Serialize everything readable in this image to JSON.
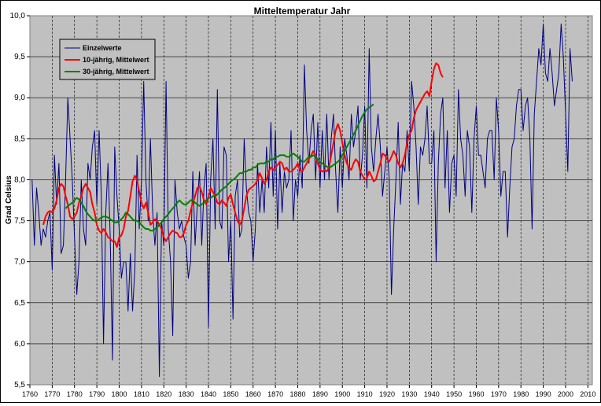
{
  "chart_data": {
    "type": "line",
    "title": "Mitteltemperatur Jahr",
    "ylabel": "Grad Celsius",
    "xlabel": "",
    "xlim": [
      1760,
      2012
    ],
    "ylim": [
      5.5,
      10.0
    ],
    "x_ticks": [
      1760,
      1770,
      1780,
      1790,
      1800,
      1810,
      1820,
      1830,
      1840,
      1850,
      1860,
      1870,
      1880,
      1890,
      1900,
      1910,
      1920,
      1930,
      1940,
      1950,
      1960,
      1970,
      1980,
      1990,
      2000,
      2010
    ],
    "y_ticks": [
      "5,5",
      "6,0",
      "6,5",
      "7,0",
      "7,5",
      "8,0",
      "8,5",
      "9,0",
      "9,5",
      "10,0"
    ],
    "y_tick_values": [
      5.5,
      6.0,
      6.5,
      7.0,
      7.5,
      8.0,
      8.5,
      9.0,
      9.5,
      10.0
    ],
    "grid": true,
    "legend_position": "top-left",
    "series": [
      {
        "name": "Einzelwerte",
        "color": "#000080",
        "x_start": 1761,
        "values": [
          8.0,
          7.2,
          7.9,
          7.6,
          7.2,
          7.4,
          7.3,
          7.5,
          7.6,
          6.9,
          8.3,
          7.7,
          8.2,
          7.1,
          7.2,
          8.0,
          9.0,
          8.5,
          8.0,
          7.3,
          6.6,
          7.0,
          8.0,
          7.4,
          7.2,
          8.2,
          8.0,
          8.4,
          8.6,
          7.7,
          8.6,
          7.8,
          6.0,
          7.6,
          8.2,
          7.3,
          5.8,
          8.4,
          7.8,
          7.4,
          6.8,
          7.0,
          7.0,
          6.4,
          7.1,
          6.4,
          6.9,
          8.3,
          7.4,
          8.0,
          9.2,
          8.0,
          7.5,
          8.5,
          7.6,
          7.2,
          7.6,
          5.6,
          7.5,
          7.2,
          9.2,
          7.4,
          7.0,
          6.1,
          8.0,
          7.6,
          7.4,
          7.5,
          7.3,
          7.2,
          6.8,
          7.0,
          8.1,
          7.2,
          7.7,
          8.1,
          7.2,
          7.9,
          8.2,
          6.2,
          8.0,
          8.5,
          7.4,
          9.1,
          7.5,
          7.4,
          8.4,
          8.3,
          7.0,
          7.5,
          6.3,
          7.8,
          8.0,
          7.3,
          7.4,
          8.5,
          7.9,
          7.6,
          7.5,
          7.0,
          7.4,
          8.2,
          7.6,
          8.0,
          7.6,
          8.4,
          7.9,
          8.7,
          7.8,
          8.6,
          7.4,
          8.2,
          7.6,
          8.1,
          7.9,
          8.0,
          8.6,
          7.5,
          8.0,
          7.8,
          8.3,
          7.9,
          9.4,
          8.6,
          8.2,
          8.6,
          8.8,
          8.0,
          8.7,
          7.9,
          8.6,
          8.0,
          8.8,
          8.0,
          8.5,
          8.8,
          8.1,
          7.6,
          8.4,
          7.9,
          8.5,
          8.3,
          8.0,
          8.8,
          8.4,
          8.6,
          8.9,
          8.0,
          8.3,
          8.9,
          7.9,
          9.6,
          8.4,
          8.1,
          8.5,
          8.8,
          8.4,
          7.8,
          8.1,
          8.4,
          8.0,
          6.6,
          7.4,
          8.0,
          8.7,
          7.7,
          8.2,
          8.1,
          8.6,
          8.1,
          9.2,
          8.9,
          8.4,
          7.7,
          8.4,
          8.3,
          8.5,
          8.9,
          8.2,
          8.2,
          8.6,
          7.0,
          8.2,
          8.8,
          9.0,
          7.9,
          8.6,
          7.6,
          8.2,
          8.3,
          7.8,
          9.1,
          8.5,
          8.3,
          7.8,
          8.6,
          8.4,
          7.6,
          8.5,
          8.9,
          8.3,
          8.3,
          8.1,
          7.9,
          8.5,
          8.6,
          8.6,
          8.0,
          9.0,
          8.6,
          7.8,
          8.1,
          8.1,
          7.3,
          7.9,
          8.4,
          8.5,
          8.9,
          9.1,
          9.1,
          8.6,
          8.9,
          9.0,
          8.5,
          7.4,
          8.8,
          9.2,
          9.6,
          9.4,
          9.9,
          9.3,
          9.2,
          9.6,
          9.3,
          8.9,
          9.1,
          9.3,
          9.9,
          9.5,
          8.8,
          8.1,
          9.6,
          9.2
        ]
      },
      {
        "name": "10-jährig, Mittelwert",
        "color": "#ff0000",
        "x_start": 1766,
        "values": [
          7.45,
          7.55,
          7.6,
          7.62,
          7.6,
          7.65,
          7.75,
          7.9,
          7.95,
          7.92,
          7.8,
          7.7,
          7.55,
          7.52,
          7.55,
          7.6,
          7.72,
          7.8,
          7.9,
          7.95,
          7.9,
          7.85,
          7.7,
          7.6,
          7.45,
          7.38,
          7.35,
          7.4,
          7.36,
          7.3,
          7.28,
          7.25,
          7.25,
          7.18,
          7.3,
          7.32,
          7.4,
          7.55,
          7.62,
          7.8,
          7.98,
          8.05,
          8.0,
          7.85,
          7.72,
          7.65,
          7.72,
          7.6,
          7.45,
          7.48,
          7.52,
          7.5,
          7.45,
          7.4,
          7.3,
          7.25,
          7.3,
          7.35,
          7.38,
          7.36,
          7.35,
          7.3,
          7.3,
          7.35,
          7.45,
          7.5,
          7.62,
          7.72,
          7.8,
          7.9,
          7.92,
          7.85,
          7.75,
          7.7,
          7.78,
          7.9,
          7.85,
          7.8,
          7.72,
          7.7,
          7.75,
          7.72,
          7.68,
          7.78,
          7.82,
          7.7,
          7.6,
          7.5,
          7.45,
          7.5,
          7.65,
          7.8,
          7.88,
          7.9,
          7.92,
          7.95,
          8.0,
          8.08,
          8.02,
          7.95,
          8.0,
          8.1,
          8.15,
          8.12,
          8.15,
          8.18,
          8.22,
          8.2,
          8.12,
          8.15,
          8.1,
          8.1,
          8.12,
          8.15,
          8.2,
          8.12,
          8.1,
          8.15,
          8.2,
          8.25,
          8.3,
          8.35,
          8.3,
          8.2,
          8.12,
          8.1,
          8.12,
          8.1,
          8.15,
          8.3,
          8.45,
          8.6,
          8.68,
          8.6,
          8.45,
          8.3,
          8.2,
          8.15,
          8.12,
          8.2,
          8.25,
          8.22,
          8.1,
          8.05,
          8.0,
          8.02,
          8.1,
          8.05,
          7.98,
          8.0,
          8.1,
          8.2,
          8.32,
          8.3,
          8.25,
          8.22,
          8.28,
          8.35,
          8.3,
          8.2,
          8.15,
          8.2,
          8.3,
          8.45,
          8.55,
          8.6,
          8.75,
          8.85,
          8.9,
          8.95,
          9.0,
          9.05,
          9.08,
          9.02,
          9.2,
          9.35,
          9.42,
          9.4,
          9.3,
          9.25
        ]
      },
      {
        "name": "30-jährig, Mittelwert",
        "color": "#008000",
        "x_start": 1776,
        "values": [
          7.65,
          7.68,
          7.7,
          7.72,
          7.75,
          7.78,
          7.76,
          7.72,
          7.68,
          7.62,
          7.58,
          7.55,
          7.52,
          7.5,
          7.5,
          7.52,
          7.54,
          7.55,
          7.55,
          7.54,
          7.52,
          7.5,
          7.48,
          7.48,
          7.5,
          7.52,
          7.55,
          7.6,
          7.58,
          7.55,
          7.52,
          7.5,
          7.5,
          7.48,
          7.45,
          7.42,
          7.4,
          7.4,
          7.38,
          7.38,
          7.4,
          7.42,
          7.45,
          7.48,
          7.52,
          7.55,
          7.58,
          7.62,
          7.65,
          7.68,
          7.72,
          7.75,
          7.72,
          7.7,
          7.7,
          7.72,
          7.75,
          7.75,
          7.72,
          7.7,
          7.68,
          7.7,
          7.72,
          7.75,
          7.78,
          7.78,
          7.8,
          7.8,
          7.82,
          7.85,
          7.88,
          7.9,
          7.92,
          7.95,
          7.98,
          8.0,
          8.02,
          8.05,
          8.08,
          8.08,
          8.1,
          8.1,
          8.12,
          8.12,
          8.15,
          8.15,
          8.18,
          8.2,
          8.2,
          8.2,
          8.22,
          8.22,
          8.25,
          8.25,
          8.28,
          8.28,
          8.3,
          8.3,
          8.3,
          8.28,
          8.28,
          8.3,
          8.32,
          8.3,
          8.28,
          8.25,
          8.22,
          8.22,
          8.25,
          8.28,
          8.28,
          8.3,
          8.28,
          8.25,
          8.22,
          8.2,
          8.18,
          8.16,
          8.15,
          8.16,
          8.18,
          8.2,
          8.22,
          8.25,
          8.3,
          8.35,
          8.4,
          8.45,
          8.5,
          8.55,
          8.6,
          8.66,
          8.72,
          8.78,
          8.82,
          8.86,
          8.88,
          8.9,
          8.92
        ]
      }
    ]
  }
}
